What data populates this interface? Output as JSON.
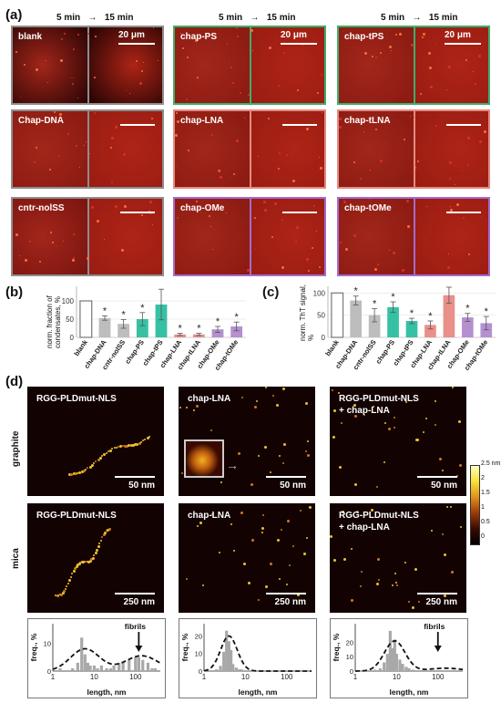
{
  "panel_a": {
    "letter": "(a)",
    "time_from": "5 min",
    "time_arrow": "→",
    "time_to": "15 min",
    "tiles": [
      {
        "label": "blank",
        "scale": "20 μm",
        "border": "#8e8e8e"
      },
      {
        "label": "chap-PS",
        "scale": "20 μm",
        "border": "#3fae6a"
      },
      {
        "label": "chap-tPS",
        "scale": "20 μm",
        "border": "#3fae6a"
      },
      {
        "label": "Chap-DNA",
        "scale": "",
        "border": "#8e8e8e"
      },
      {
        "label": "chap-LNA",
        "scale": "",
        "border": "#e58a80"
      },
      {
        "label": "chap-tLNA",
        "scale": "",
        "border": "#e58a80"
      },
      {
        "label": "cntr-nolSS",
        "scale": "",
        "border": "#8e8e8e"
      },
      {
        "label": "chap-OMe",
        "scale": "",
        "border": "#a26ccd"
      },
      {
        "label": "chap-tOMe",
        "scale": "",
        "border": "#a26ccd"
      }
    ]
  },
  "panel_b": {
    "letter": "(b)",
    "ylabel": "norm. fraction of condensates, %",
    "star": "*"
  },
  "panel_c": {
    "letter": "(c)",
    "ylabel": "norm. ThT signal, %",
    "star": "*"
  },
  "panel_d": {
    "letter": "(d)",
    "row_labels": [
      "graphite",
      "mica"
    ],
    "colorbar_labels": [
      "2.5 nm",
      "2",
      "1.5",
      "1",
      "0.5",
      "0"
    ],
    "images": [
      {
        "label": "RGG-PLDmut-NLS",
        "label2": "",
        "scale": "50 nm"
      },
      {
        "label": "chap-LNA",
        "label2": "",
        "scale": "50 nm"
      },
      {
        "label": "RGG-PLDmut-NLS",
        "label2": "+ chap-LNA",
        "scale": "50 nm"
      },
      {
        "label": "RGG-PLDmut-NLS",
        "label2": "",
        "scale": "250 nm"
      },
      {
        "label": "chap-LNA",
        "label2": "",
        "scale": "250 nm"
      },
      {
        "label": "RGG-PLDmut-NLS",
        "label2": "+ chap-LNA",
        "scale": "250 nm"
      }
    ],
    "histograms": [
      {
        "ylabel": "freq., %",
        "xlabel": "length, nm",
        "yticks": [
          "0",
          "10"
        ],
        "xticks": [
          "1",
          "10",
          "100"
        ],
        "annotation": "fibrils"
      },
      {
        "ylabel": "freq., %",
        "xlabel": "length, nm",
        "yticks": [
          "0",
          "10",
          "20"
        ],
        "xticks": [
          "1",
          "10",
          "100"
        ],
        "annotation": ""
      },
      {
        "ylabel": "freq., %",
        "xlabel": "length, nm",
        "yticks": [
          "0",
          "10",
          "20"
        ],
        "xticks": [
          "1",
          "10",
          "100"
        ],
        "annotation": "fibrils"
      }
    ]
  },
  "chart_data": [
    {
      "type": "bar",
      "categories": [
        "blank",
        "chap-DNA",
        "cntr-nolSS",
        "chap-PS",
        "chap-tPS",
        "chap-LNA",
        "chap-tLNA",
        "chap-OMe",
        "chap-tOMe"
      ],
      "values": [
        100,
        53,
        37,
        50,
        90,
        8,
        8,
        22,
        30
      ],
      "errors": [
        0,
        6,
        12,
        18,
        42,
        3,
        3,
        8,
        12
      ],
      "significant": [
        false,
        true,
        true,
        true,
        false,
        true,
        true,
        true,
        true
      ],
      "colors": [
        "#ffffff",
        "#bdbdbd",
        "#bdbdbd",
        "#36c1a4",
        "#36c1a4",
        "#e9908a",
        "#e9908a",
        "#b490d0",
        "#b490d0"
      ],
      "yticks": [
        0,
        50,
        100
      ],
      "ylim": [
        0,
        140
      ],
      "ylabel": "norm. fraction of condensates, %"
    },
    {
      "type": "bar",
      "categories": [
        "blank",
        "chap-DNA",
        "cntr-nolSS",
        "chap-PS",
        "chap-tPS",
        "chap-LNA",
        "chap-tLNA",
        "chap-OMe",
        "chap-tOMe"
      ],
      "values": [
        100,
        83,
        50,
        68,
        37,
        28,
        95,
        45,
        32
      ],
      "errors": [
        0,
        10,
        15,
        12,
        6,
        9,
        18,
        9,
        15
      ],
      "significant": [
        false,
        true,
        true,
        true,
        true,
        true,
        false,
        true,
        true
      ],
      "colors": [
        "#ffffff",
        "#bdbdbd",
        "#bdbdbd",
        "#36c1a4",
        "#36c1a4",
        "#e9908a",
        "#e9908a",
        "#b490d0",
        "#b490d0"
      ],
      "yticks": [
        0,
        50,
        100
      ],
      "ylim": [
        0,
        115
      ],
      "ylabel": "norm. ThT signal, %"
    },
    {
      "type": "bar",
      "categories": [
        "1.5",
        "2",
        "2.5",
        "3",
        "4",
        "5",
        "6",
        "7",
        "8",
        "10",
        "12",
        "15",
        "20",
        "25",
        "30",
        "40",
        "50",
        "70",
        "100",
        "120",
        "150",
        "200",
        "250",
        "300"
      ],
      "values": [
        1,
        0,
        0,
        1,
        3,
        12,
        6,
        3,
        2,
        2,
        1,
        2,
        1,
        1,
        2,
        3,
        3,
        4,
        5,
        5,
        4,
        3,
        1,
        1
      ],
      "xlabel": "length, nm",
      "ylabel": "freq., %",
      "xlog": true,
      "xticks": [
        1,
        10,
        100
      ],
      "ylim": [
        0,
        17
      ],
      "fit_peaks": [
        [
          6,
          8,
          0.35
        ],
        [
          140,
          5.5,
          0.4
        ]
      ]
    },
    {
      "type": "bar",
      "categories": [
        "2",
        "2.5",
        "3",
        "3.5",
        "4",
        "4.5",
        "5",
        "6",
        "7",
        "8"
      ],
      "values": [
        1,
        3,
        11,
        23,
        17,
        12,
        4,
        2,
        1,
        1
      ],
      "xlabel": "length, nm",
      "ylabel": "freq., %",
      "xlog": true,
      "xticks": [
        1,
        10,
        100
      ],
      "ylim": [
        0,
        27
      ],
      "fit_peaks": [
        [
          4,
          20,
          0.2
        ]
      ]
    },
    {
      "type": "bar",
      "categories": [
        "3",
        "4",
        "5",
        "6",
        "7",
        "8",
        "9",
        "10",
        "12",
        "14",
        "17",
        "20",
        "25"
      ],
      "values": [
        1,
        2,
        6,
        12,
        28,
        16,
        22,
        12,
        8,
        5,
        3,
        2,
        1
      ],
      "xlabel": "length, nm",
      "ylabel": "freq., %",
      "xlog": true,
      "xticks": [
        1,
        10,
        100
      ],
      "ylim": [
        0,
        33
      ],
      "fit_peaks": [
        [
          9,
          21,
          0.25
        ],
        [
          150,
          2,
          0.4
        ]
      ]
    }
  ]
}
